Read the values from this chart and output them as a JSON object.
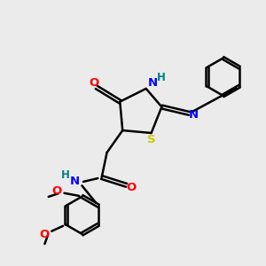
{
  "bg_color": "#ebebeb",
  "bond_color": "#000000",
  "colors": {
    "O": "#ff0000",
    "N": "#0000ff",
    "S": "#cccc00",
    "H_teal": "#008080",
    "C": "#000000"
  },
  "lw": 1.8
}
